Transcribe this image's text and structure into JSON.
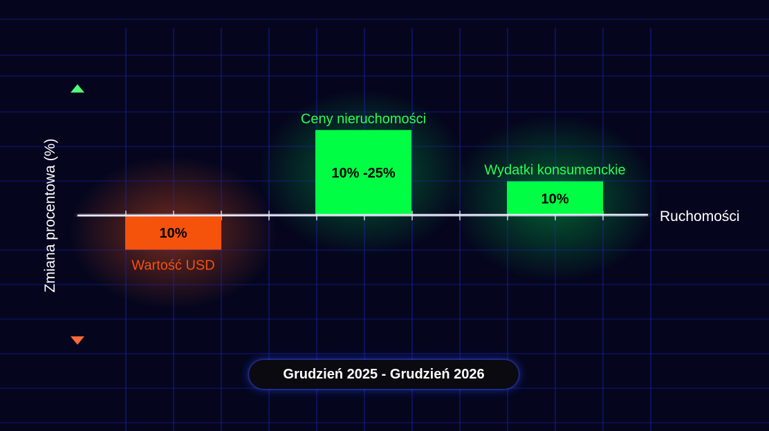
{
  "chart_data": {
    "type": "bar",
    "xlabel": "Ruchomości",
    "ylabel": "Zmiana procentowa (%)",
    "bars": [
      {
        "category": "Wartość USD",
        "value": -10,
        "value_label": "10%",
        "color": "#f5520c",
        "label_color": "#f5520c"
      },
      {
        "category": "Ceny nieruchomości",
        "value_range": [
          10,
          25
        ],
        "value_label": "10% -25%",
        "color": "#00ff44",
        "label_color": "#2bff55"
      },
      {
        "category": "Wydatki konsumenckie",
        "value": 10,
        "value_label": "10%",
        "color": "#00ff44",
        "label_color": "#2bff55"
      }
    ],
    "grid": true,
    "axis_arrow_up_color": "#4dff7a",
    "axis_arrow_down_color": "#ff6a3a"
  },
  "period": "Grudzień 2025 - Grudzień 2026"
}
